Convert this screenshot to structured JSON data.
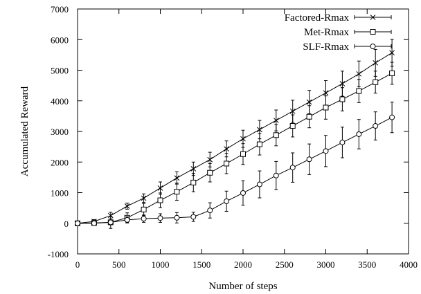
{
  "chart_data": {
    "type": "line",
    "title": "",
    "xlabel": "Number of steps",
    "ylabel": "Accumulated Reward",
    "xlim": [
      0,
      4000
    ],
    "ylim": [
      -1000,
      7000
    ],
    "xticks": [
      0,
      500,
      1000,
      1500,
      2000,
      2500,
      3000,
      3500,
      4000
    ],
    "yticks": [
      -1000,
      0,
      1000,
      2000,
      3000,
      4000,
      5000,
      6000,
      7000
    ],
    "grid": false,
    "legend_position": "top-right",
    "x": [
      0,
      200,
      400,
      600,
      800,
      1000,
      1200,
      1400,
      1600,
      1800,
      2000,
      2200,
      2400,
      2600,
      2800,
      3000,
      3200,
      3400,
      3600,
      3800
    ],
    "series": [
      {
        "name": "Factored-Rmax",
        "marker": "x",
        "values": [
          0,
          60,
          250,
          560,
          820,
          1150,
          1480,
          1780,
          2080,
          2430,
          2760,
          3060,
          3360,
          3660,
          3960,
          4260,
          4560,
          4880,
          5240,
          5570
        ],
        "errors": [
          30,
          60,
          110,
          100,
          140,
          200,
          200,
          220,
          240,
          260,
          280,
          300,
          340,
          360,
          380,
          400,
          410,
          420,
          440,
          440
        ]
      },
      {
        "name": "Met-Rmax",
        "marker": "square",
        "values": [
          0,
          10,
          30,
          180,
          450,
          750,
          1030,
          1330,
          1650,
          1950,
          2260,
          2580,
          2880,
          3180,
          3480,
          3780,
          4050,
          4320,
          4610,
          4900
        ],
        "errors": [
          20,
          40,
          200,
          160,
          200,
          240,
          280,
          300,
          300,
          330,
          340,
          350,
          350,
          360,
          360,
          380,
          380,
          380,
          360,
          360
        ]
      },
      {
        "name": "SLF-Rmax",
        "marker": "circle",
        "values": [
          0,
          0,
          30,
          110,
          150,
          170,
          180,
          210,
          420,
          720,
          990,
          1270,
          1560,
          1820,
          2090,
          2360,
          2640,
          2910,
          3180,
          3460
        ],
        "errors": [
          20,
          20,
          60,
          100,
          120,
          140,
          170,
          150,
          250,
          330,
          400,
          440,
          460,
          480,
          500,
          510,
          500,
          480,
          460,
          500
        ]
      }
    ]
  }
}
